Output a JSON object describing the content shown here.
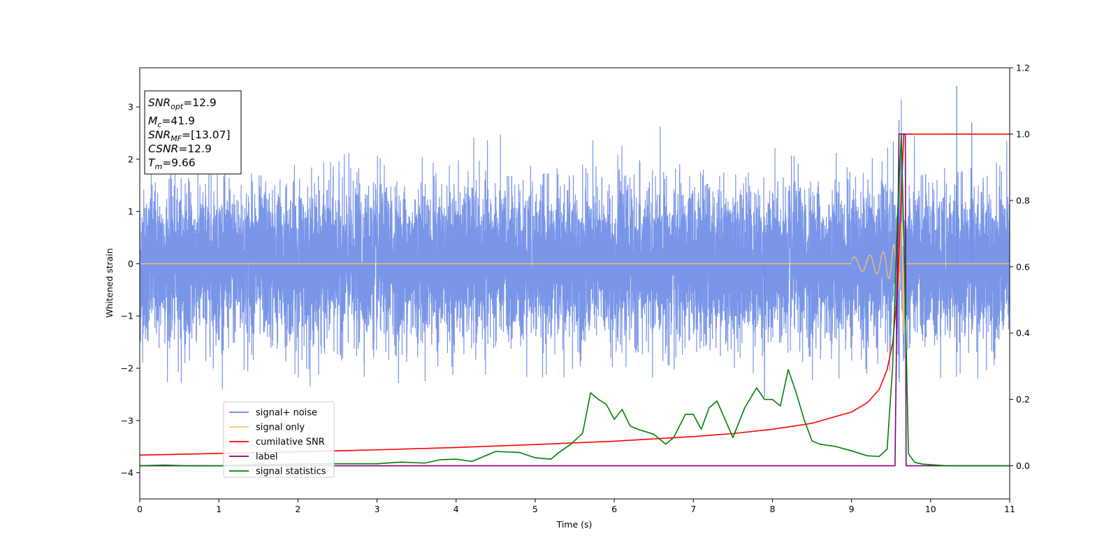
{
  "chart_data": {
    "type": "line",
    "xlabel": "Time (s)",
    "ylabel": "Whitened strain",
    "xlim": [
      0,
      11
    ],
    "ylim_left": [
      -4.5,
      3.75
    ],
    "ylim_right": [
      -0.1,
      1.2
    ],
    "x_ticks": [
      "0",
      "1",
      "2",
      "3",
      "4",
      "5",
      "6",
      "7",
      "8",
      "9",
      "10",
      "11"
    ],
    "y_left_ticks": [
      "−4",
      "−3",
      "−2",
      "−1",
      "0",
      "1",
      "2",
      "3"
    ],
    "y_right_ticks": [
      "0.0",
      "0.2",
      "0.4",
      "0.6",
      "0.8",
      "1.0",
      "1.2"
    ],
    "grid": false,
    "legend_placement": "lower-left",
    "info_box": {
      "snr_opt": {
        "main": "SNR",
        "sub": "opt",
        "value": "=12.9"
      },
      "mc": {
        "main": "M",
        "sub": "c",
        "value": "=41.9"
      },
      "snr_mf": {
        "main": "SNR",
        "sub": "MF",
        "value": "=[13.07]"
      },
      "csnr": {
        "main": "CSNR",
        "value": "=12.9"
      },
      "tm": {
        "main": "T",
        "sub": "m",
        "value": "=9.66"
      }
    },
    "series": [
      {
        "name": "signal+ noise",
        "axis": "left",
        "color": "#6a8ae6",
        "description_values": {
          "noise_std": 0.75,
          "envelope": [
            -2.3,
            2.5
          ],
          "spike_max": 3.4
        }
      },
      {
        "name": "signal only",
        "axis": "left",
        "color": "#ffc36b",
        "description_values": {
          "chirp_end_time": 9.66,
          "peak_amplitude": 2.5
        }
      },
      {
        "name": "cumilative SNR",
        "axis": "right",
        "color": "#ff0000",
        "x": [
          0,
          1,
          2,
          3,
          4,
          5,
          6,
          7,
          7.5,
          8,
          8.5,
          9,
          9.2,
          9.35,
          9.45,
          9.52,
          9.58,
          9.62,
          9.66,
          9.7,
          11
        ],
        "values": [
          0.032,
          0.037,
          0.042,
          0.048,
          0.055,
          0.064,
          0.074,
          0.088,
          0.097,
          0.11,
          0.128,
          0.162,
          0.19,
          0.23,
          0.29,
          0.37,
          0.52,
          0.75,
          1.0,
          1.0,
          1.0
        ]
      },
      {
        "name": "label",
        "axis": "right",
        "color": "#800080",
        "x": [
          0,
          9.55,
          9.6,
          9.68,
          9.69,
          11
        ],
        "values": [
          0,
          0,
          1,
          1,
          0,
          0
        ]
      },
      {
        "name": "signal statistics",
        "axis": "right",
        "color": "#008000",
        "x": [
          0,
          0.3,
          0.6,
          1,
          1.5,
          2,
          2.5,
          3,
          3.3,
          3.6,
          3.8,
          4,
          4.2,
          4.5,
          4.8,
          5,
          5.2,
          5.3,
          5.45,
          5.6,
          5.7,
          5.8,
          5.9,
          6,
          6.1,
          6.2,
          6.3,
          6.5,
          6.65,
          6.75,
          6.9,
          7,
          7.1,
          7.2,
          7.3,
          7.5,
          7.65,
          7.8,
          7.9,
          8,
          8.1,
          8.2,
          8.3,
          8.4,
          8.5,
          8.6,
          8.8,
          9,
          9.2,
          9.35,
          9.45,
          9.52,
          9.58,
          9.63,
          9.67,
          9.72,
          9.8,
          9.9,
          10.2,
          11
        ],
        "values": [
          0.0,
          0.002,
          0.0,
          0.0,
          0.003,
          0.005,
          0.006,
          0.006,
          0.011,
          0.008,
          0.018,
          0.02,
          0.013,
          0.043,
          0.04,
          0.024,
          0.02,
          0.04,
          0.065,
          0.098,
          0.22,
          0.2,
          0.185,
          0.14,
          0.17,
          0.12,
          0.11,
          0.095,
          0.065,
          0.085,
          0.155,
          0.155,
          0.11,
          0.175,
          0.195,
          0.085,
          0.175,
          0.235,
          0.2,
          0.2,
          0.18,
          0.29,
          0.22,
          0.14,
          0.075,
          0.065,
          0.058,
          0.045,
          0.03,
          0.028,
          0.05,
          0.3,
          0.75,
          1.0,
          0.6,
          0.036,
          0.01,
          0.005,
          0.0,
          0.0
        ]
      }
    ]
  },
  "legend": {
    "items": [
      {
        "label": "signal+ noise",
        "color": "#6a8ae6"
      },
      {
        "label": "signal only",
        "color": "#ffc36b"
      },
      {
        "label": "cumilative SNR",
        "color": "#ff0000"
      },
      {
        "label": "label",
        "color": "#800080"
      },
      {
        "label": "signal statistics",
        "color": "#008000"
      }
    ]
  }
}
